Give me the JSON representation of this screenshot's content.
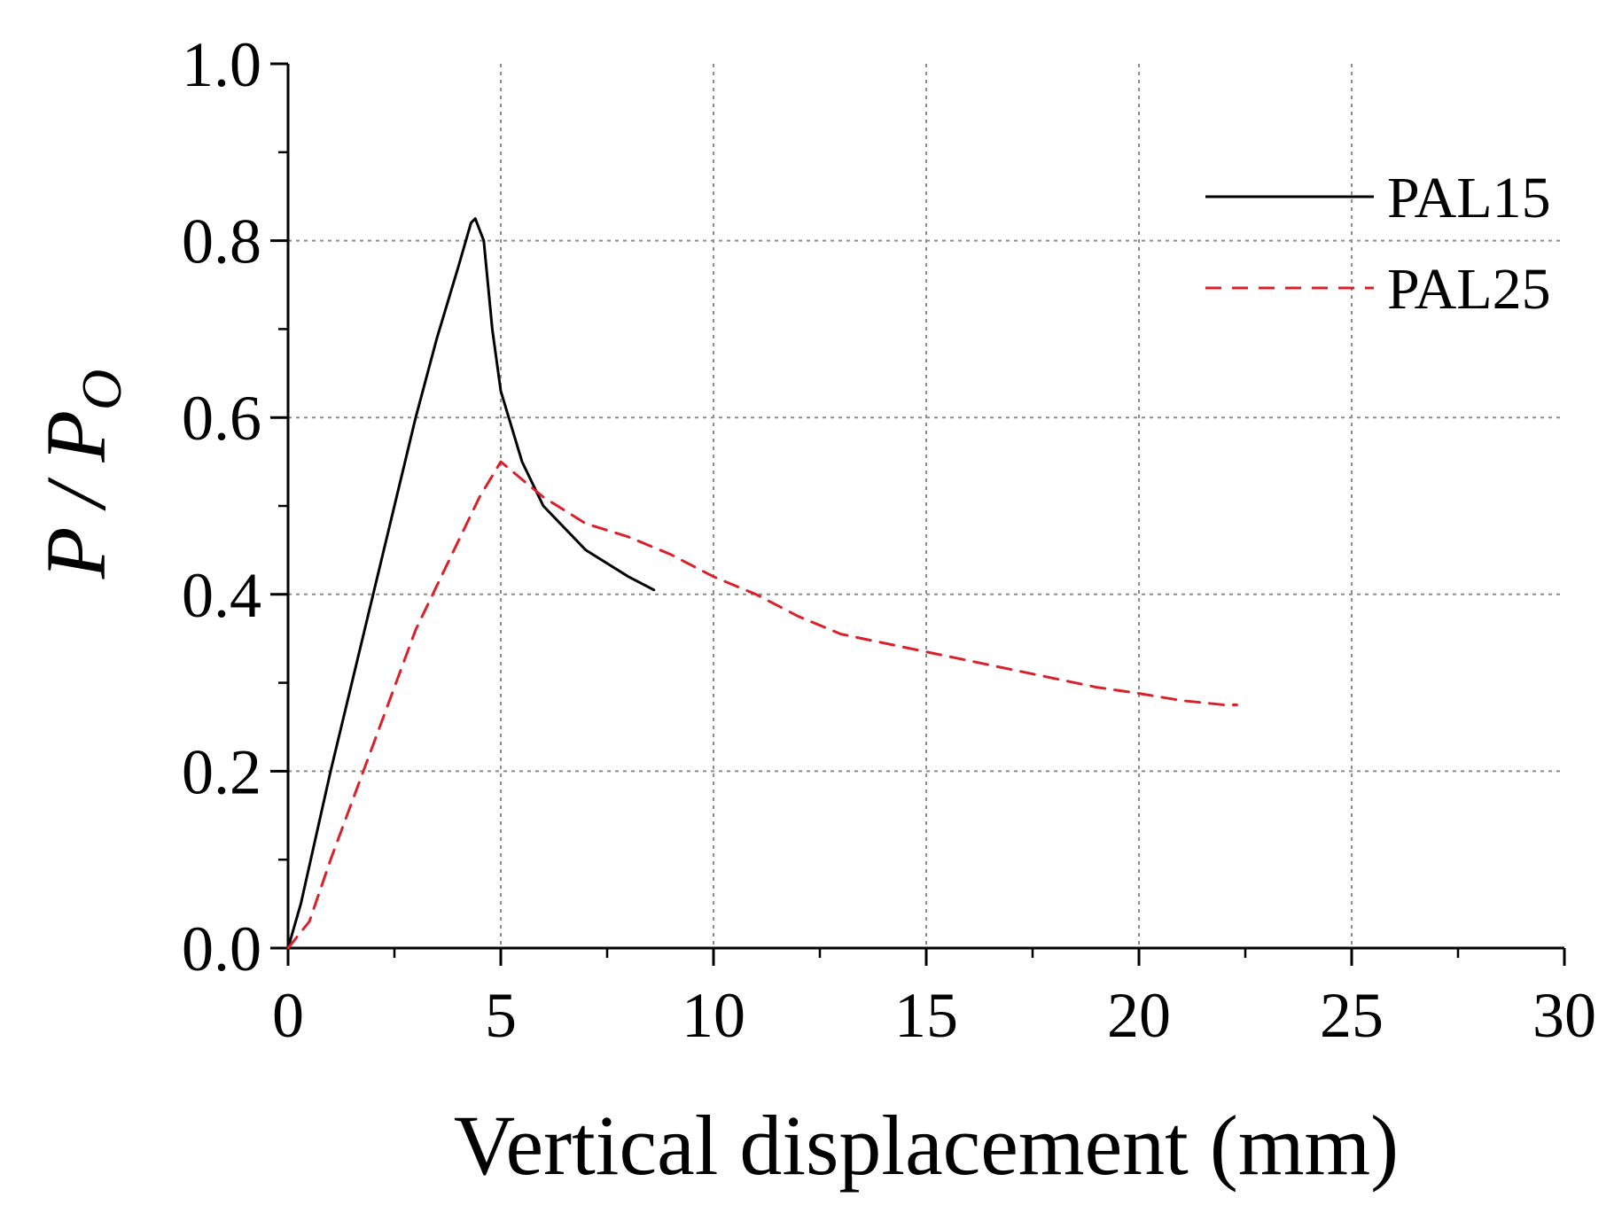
{
  "chart_data": {
    "type": "line",
    "title": "",
    "xlabel": "Vertical displacement (mm)",
    "ylabel": "P / P",
    "ylabel_sub": "O",
    "xlim": [
      0,
      30
    ],
    "ylim": [
      0,
      1.0
    ],
    "x_ticks": [
      "0",
      "5",
      "10",
      "15",
      "20",
      "25",
      "30"
    ],
    "y_ticks": [
      "0.0",
      "0.2",
      "0.4",
      "0.6",
      "0.8",
      "1.0"
    ],
    "grid": true,
    "legend_position": "top-right",
    "series": [
      {
        "name": "PAL15",
        "style": "solid",
        "color": "#000000",
        "points": [
          [
            0,
            0
          ],
          [
            0.3,
            0.05
          ],
          [
            1,
            0.2
          ],
          [
            2,
            0.4
          ],
          [
            3,
            0.6
          ],
          [
            3.5,
            0.69
          ],
          [
            4,
            0.77
          ],
          [
            4.3,
            0.82
          ],
          [
            4.4,
            0.825
          ],
          [
            4.6,
            0.8
          ],
          [
            4.8,
            0.7
          ],
          [
            5,
            0.63
          ],
          [
            5.5,
            0.55
          ],
          [
            6,
            0.5
          ],
          [
            7,
            0.45
          ],
          [
            8,
            0.42
          ],
          [
            8.6,
            0.405
          ]
        ]
      },
      {
        "name": "PAL25",
        "style": "dashed",
        "color": "#d9202b",
        "points": [
          [
            0,
            0
          ],
          [
            0.5,
            0.03
          ],
          [
            1,
            0.1
          ],
          [
            2,
            0.23
          ],
          [
            3,
            0.36
          ],
          [
            4,
            0.46
          ],
          [
            4.5,
            0.51
          ],
          [
            5,
            0.55
          ],
          [
            5.5,
            0.53
          ],
          [
            6,
            0.51
          ],
          [
            7,
            0.48
          ],
          [
            8,
            0.465
          ],
          [
            9,
            0.445
          ],
          [
            10,
            0.42
          ],
          [
            11,
            0.4
          ],
          [
            12,
            0.375
          ],
          [
            13,
            0.355
          ],
          [
            14,
            0.345
          ],
          [
            15,
            0.335
          ],
          [
            16,
            0.325
          ],
          [
            17,
            0.315
          ],
          [
            18,
            0.305
          ],
          [
            19,
            0.295
          ],
          [
            20,
            0.288
          ],
          [
            21,
            0.28
          ],
          [
            22,
            0.275
          ],
          [
            22.3,
            0.275
          ]
        ]
      }
    ]
  }
}
